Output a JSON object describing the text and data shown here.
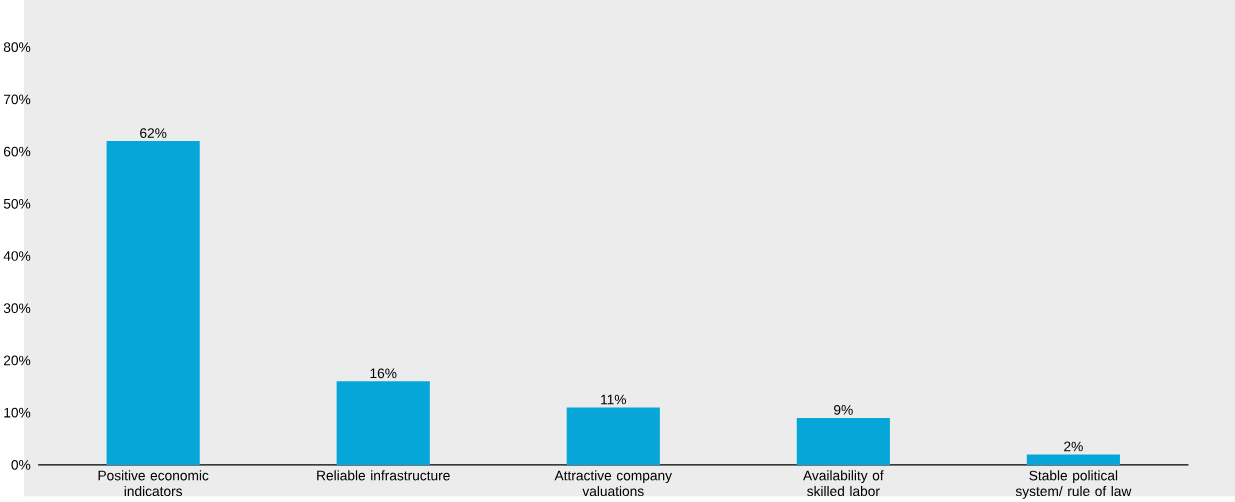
{
  "chart_data": {
    "type": "bar",
    "categories": [
      "Positive economic indicators",
      "Reliable infrastructure",
      "Attractive company valuations",
      "Availability of skilled labor",
      "Stable political system/ rule of law"
    ],
    "values": [
      62,
      16,
      11,
      9,
      2
    ],
    "value_labels": [
      "62%",
      "16%",
      "11%",
      "9%",
      "2%"
    ],
    "color": "#07a6d9",
    "ylim": [
      0,
      80
    ],
    "yticks": [
      {
        "value": 0,
        "label": "0%"
      },
      {
        "value": 10,
        "label": "10%"
      },
      {
        "value": 20,
        "label": "20%"
      },
      {
        "value": 30,
        "label": "30%"
      },
      {
        "value": 40,
        "label": "40%"
      },
      {
        "value": 50,
        "label": "50%"
      },
      {
        "value": 60,
        "label": "60%"
      },
      {
        "value": 70,
        "label": "70%"
      },
      {
        "value": 80,
        "label": "80%"
      }
    ]
  }
}
